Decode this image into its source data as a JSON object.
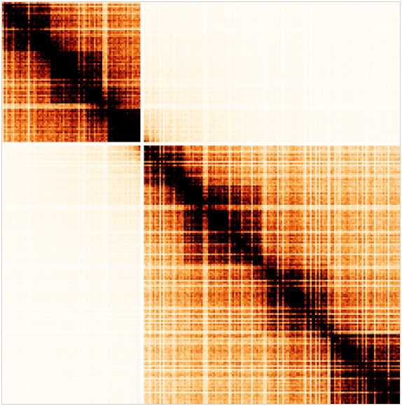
{
  "chart_data": {
    "type": "heatmap",
    "title": "",
    "xlabel": "",
    "ylabel": "",
    "matrix_size": 230,
    "gap_bins": [
      80,
      81
    ],
    "domains": [
      {
        "start": 0,
        "end": 80,
        "strength": 0.55
      },
      {
        "start": 82,
        "end": 230,
        "strength": 0.45
      },
      {
        "start": 0,
        "end": 28,
        "strength": 0.35
      },
      {
        "start": 28,
        "end": 58,
        "strength": 0.3
      },
      {
        "start": 58,
        "end": 80,
        "strength": 0.35
      },
      {
        "start": 82,
        "end": 105,
        "strength": 0.35
      },
      {
        "start": 105,
        "end": 150,
        "strength": 0.3
      },
      {
        "start": 150,
        "end": 190,
        "strength": 0.28
      },
      {
        "start": 190,
        "end": 230,
        "strength": 0.32
      }
    ],
    "hot_spots": [
      {
        "i": 58,
        "j": 58,
        "value": 1.0
      },
      {
        "i": 103,
        "j": 103,
        "value": 1.0
      },
      {
        "i": 220,
        "j": 220,
        "value": 1.0
      }
    ],
    "inter_domain_contact": 0.08,
    "colormap": [
      "#ffffff",
      "#fff3dc",
      "#fdd9a0",
      "#f9a23c",
      "#e2570f",
      "#a8170c",
      "#4a0302",
      "#000000"
    ]
  }
}
